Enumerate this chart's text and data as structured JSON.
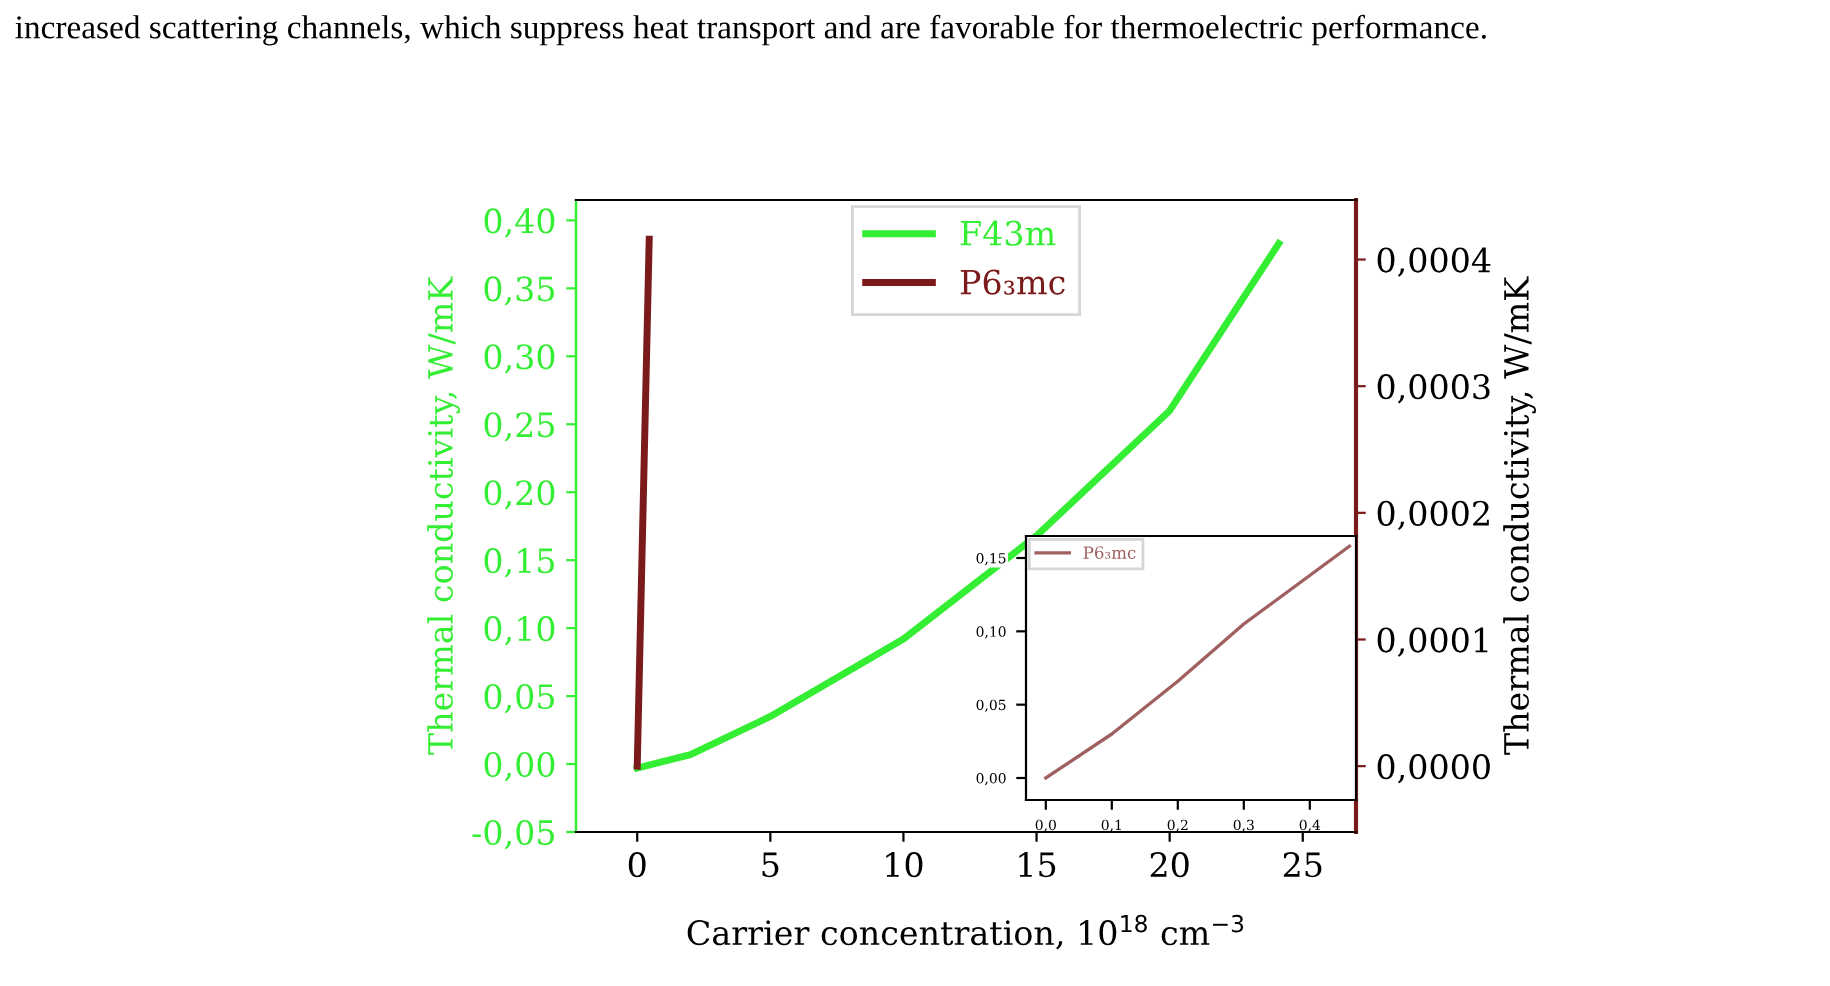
{
  "chart_data": [
    {
      "type": "line",
      "xlabel": "Carrier concentration, 10$^{18}$ cm$^{−3}$",
      "ylabel": "Thermal conductivity, W/mK",
      "y2label": "Thermal conductivity, W/mK",
      "annotations": [
        "increased scattering channels, which suppress heat transport and are favorable for thermoelectric performance."
      ],
      "series": [
        {
          "name": "F43m",
          "color": "#33ee33",
          "x": [
            0,
            2,
            5,
            10,
            15,
            20,
            24.1
          ],
          "values": [
            -0.003,
            0.007,
            0.035,
            0.092,
            0.168,
            0.26,
            0.383
          ]
        },
        {
          "name": "P6₃mc",
          "color": "#7a1a1a",
          "axis": "y2",
          "x": [
            0,
            0.45
          ],
          "values": [
            0,
            0.000416
          ]
        }
      ],
      "xlim": [
        -2.3,
        27
      ],
      "xticks": [
        0,
        5,
        10,
        15,
        20,
        25
      ],
      "ylim": [
        -0.05,
        0.415
      ],
      "yticks": [
        {
          "value": -0.05,
          "label": "-0,05"
        },
        {
          "value": 0,
          "label": "0,00"
        },
        {
          "value": 0.05,
          "label": "0,05"
        },
        {
          "value": 0.1,
          "label": "0,10"
        },
        {
          "value": 0.15,
          "label": "0,15"
        },
        {
          "value": 0.2,
          "label": "0,20"
        },
        {
          "value": 0.25,
          "label": "0,25"
        },
        {
          "value": 0.3,
          "label": "0,30"
        },
        {
          "value": 0.35,
          "label": "0,35"
        },
        {
          "value": 0.4,
          "label": "0,40"
        }
      ],
      "y2lim": [
        -5.2e-05,
        0.000447
      ],
      "y2ticks": [
        {
          "value": 0,
          "label": "0,0000"
        },
        {
          "value": 0.0001,
          "label": "0,0001"
        },
        {
          "value": 0.0002,
          "label": "0,0002"
        },
        {
          "value": 0.0003,
          "label": "0,0003"
        },
        {
          "value": 0.0004,
          "label": "0,0004"
        }
      ],
      "legend": "top",
      "grid": false
    },
    {
      "type": "line",
      "series": [
        {
          "name": "P6₃mc",
          "color": "#a06060",
          "x": [
            0,
            0.1,
            0.2,
            0.3,
            0.46
          ],
          "values": [
            0,
            0.03,
            0.066,
            0.105,
            0.158
          ]
        }
      ],
      "xlim": [
        -0.03,
        0.47
      ],
      "xticks": [
        {
          "value": 0,
          "label": "0,0"
        },
        {
          "value": 0.1,
          "label": "0,1"
        },
        {
          "value": 0.2,
          "label": "0,2"
        },
        {
          "value": 0.3,
          "label": "0,3"
        },
        {
          "value": 0.4,
          "label": "0,4"
        }
      ],
      "ylim": [
        -0.015,
        0.165
      ],
      "yticks": [
        {
          "value": 0,
          "label": "0,00"
        },
        {
          "value": 0.05,
          "label": "0,05"
        },
        {
          "value": 0.1,
          "label": "0,10"
        },
        {
          "value": 0.15,
          "label": "0,15"
        }
      ],
      "legend": "top left",
      "grid": false
    }
  ]
}
